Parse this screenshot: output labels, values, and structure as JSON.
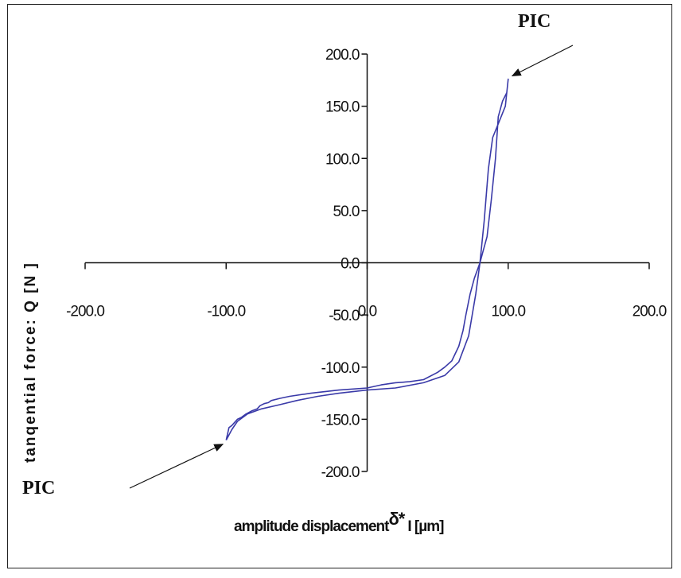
{
  "chart_data": {
    "type": "line",
    "title": "",
    "xlabel": "amplitude displacement",
    "xlabel_symbol": "δ*",
    "xlabel_unit": "I [µm]",
    "ylabel": "tanqential force: Q [N ]",
    "xlim": [
      -200,
      200
    ],
    "ylim": [
      -200,
      200
    ],
    "x_ticks": [
      -200,
      -100,
      0,
      100,
      200
    ],
    "x_tick_labels": [
      "-200.0",
      "-100.0",
      "0.0",
      "100.0",
      "200.0"
    ],
    "y_ticks": [
      200,
      150,
      100,
      50,
      0,
      -50,
      -100,
      -150,
      -200
    ],
    "y_tick_labels": [
      "200.0",
      "150.0",
      "100.0",
      "50.0",
      "0.0",
      "-50.0",
      "-100.0",
      "-150.0",
      "-200.0"
    ],
    "grid": false,
    "legend": "none",
    "line_color": "#3a3aa8",
    "series": [
      {
        "x": [
          -100,
          -98,
          -96,
          -92,
          -85,
          -75,
          -62,
          -50,
          -35,
          -20,
          0,
          20,
          40,
          55,
          65,
          72,
          77,
          80,
          83,
          86,
          89,
          92,
          95,
          98,
          100,
          99,
          96,
          93,
          91,
          88,
          85,
          82,
          80,
          76,
          73,
          70,
          68,
          65,
          60,
          55,
          50,
          40,
          30,
          20,
          10,
          0,
          -10,
          -20,
          -40,
          -55,
          -62,
          -68,
          -70,
          -73,
          -76,
          -78,
          -82,
          -86,
          -89,
          -92,
          -94,
          -96,
          -98,
          -100
        ],
        "y": [
          -170,
          -165,
          -160,
          -152,
          -145,
          -140,
          -136,
          -132,
          -128,
          -125,
          -122,
          -120,
          -115,
          -108,
          -95,
          -70,
          -30,
          0,
          40,
          90,
          120,
          130,
          140,
          150,
          176,
          163,
          155,
          140,
          100,
          60,
          25,
          10,
          0,
          -15,
          -30,
          -50,
          -65,
          -80,
          -94,
          -100,
          -105,
          -112,
          -114,
          -115,
          -117,
          -120,
          -121,
          -122,
          -125,
          -128,
          -130,
          -132,
          -134,
          -135,
          -137,
          -140,
          -142,
          -145,
          -148,
          -150,
          -153,
          -156,
          -158,
          -170
        ]
      }
    ],
    "annotations": [
      {
        "text": "PIC",
        "target": "upper-right peak"
      },
      {
        "text": "PIC",
        "target": "lower-left peak"
      }
    ]
  }
}
